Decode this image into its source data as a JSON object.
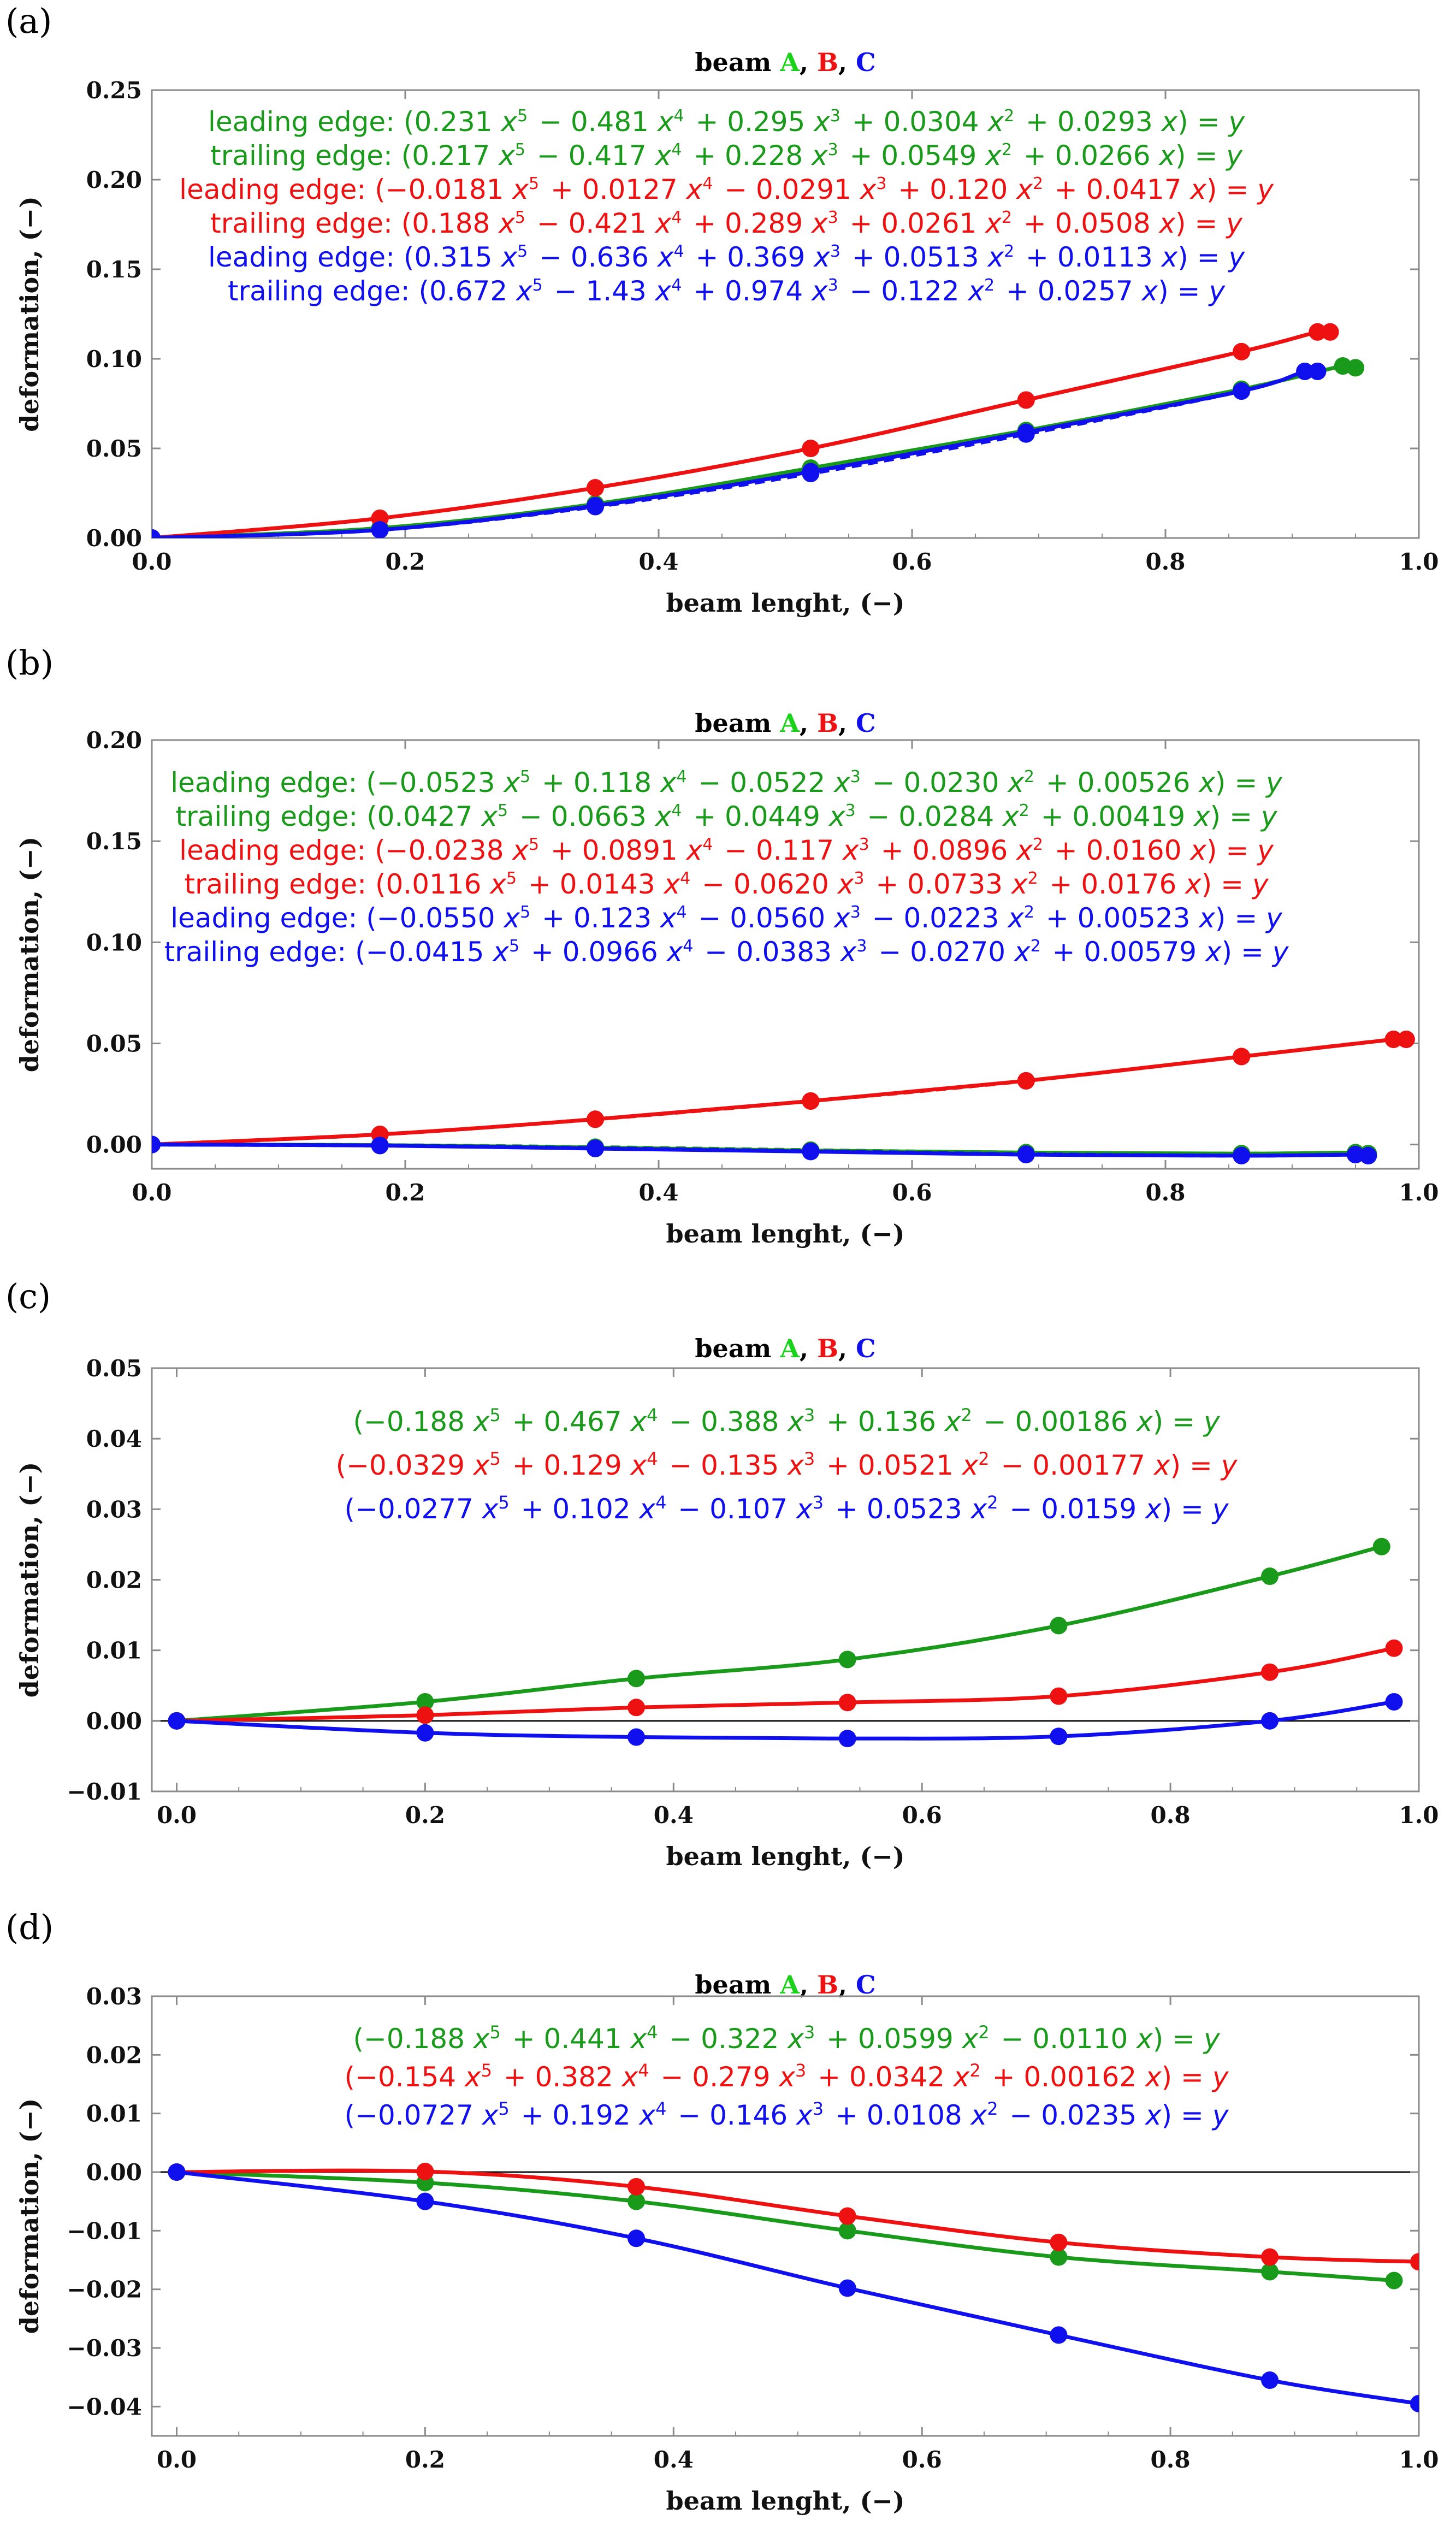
{
  "colors": {
    "A": "#1a9a1a",
    "A_title": "#19d219",
    "B": "#ee1111",
    "C": "#1010ee"
  },
  "chart_data": [
    {
      "panel": "(a)",
      "type": "line",
      "title": {
        "prefix": "beam ",
        "A": "A",
        "sep1": ", ",
        "B": "B",
        "sep2": ", ",
        "C": "C"
      },
      "xlabel": "beam lenght, (−)",
      "ylabel": "deformation, (−)",
      "xlim": [
        0,
        1.0
      ],
      "ylim": [
        0,
        0.25
      ],
      "xticks": [
        "0.0",
        "0.2",
        "0.4",
        "0.6",
        "0.8",
        "1.0"
      ],
      "yticks": [
        "0.00",
        "0.05",
        "0.10",
        "0.15",
        "0.20",
        "0.25"
      ],
      "xtick_values": [
        0,
        0.2,
        0.4,
        0.6,
        0.8,
        1.0
      ],
      "ytick_values": [
        0,
        0.05,
        0.1,
        0.15,
        0.2,
        0.25
      ],
      "zero_line": false,
      "equations": [
        {
          "color": "A",
          "label": "leading edge:",
          "coeffs": [
            0.231,
            -0.481,
            0.295,
            0.0304,
            0.0293
          ],
          "text": [
            "0.231",
            "− 0.481",
            "+ 0.295",
            "+ 0.0304",
            "+ 0.0293"
          ]
        },
        {
          "color": "A",
          "label": "trailing edge:",
          "coeffs": [
            0.217,
            -0.417,
            0.228,
            0.0549,
            0.0266
          ],
          "text": [
            "0.217",
            "− 0.417",
            "+ 0.228",
            "+ 0.0549",
            "+ 0.0266"
          ]
        },
        {
          "color": "B",
          "label": "leading edge:",
          "coeffs": [
            -0.0181,
            0.0127,
            -0.0291,
            0.12,
            0.0417
          ],
          "text": [
            "−0.0181",
            "+ 0.0127",
            "− 0.0291",
            "+ 0.120",
            "+ 0.0417"
          ]
        },
        {
          "color": "B",
          "label": "trailing edge:",
          "coeffs": [
            0.188,
            -0.421,
            0.289,
            0.0261,
            0.0508
          ],
          "text": [
            "0.188",
            "− 0.421",
            "+ 0.289",
            "+ 0.0261",
            "+ 0.0508"
          ]
        },
        {
          "color": "C",
          "label": "leading edge:",
          "coeffs": [
            0.315,
            -0.636,
            0.369,
            0.0513,
            0.0113
          ],
          "text": [
            "0.315",
            "− 0.636",
            "+ 0.369",
            "+ 0.0513",
            "+ 0.0113"
          ]
        },
        {
          "color": "C",
          "label": "trailing edge:",
          "coeffs": [
            0.672,
            -1.43,
            0.974,
            -0.122,
            0.0257
          ],
          "text": [
            "0.672",
            "− 1.43",
            "+ 0.974",
            "− 0.122",
            "+ 0.0257"
          ]
        }
      ],
      "series": [
        {
          "name": "A leading edge",
          "color": "A",
          "dashed": false,
          "x": [
            0,
            0.18,
            0.35,
            0.52,
            0.69,
            0.86,
            0.94,
            0.95
          ],
          "y": [
            0,
            0.0055,
            0.019,
            0.039,
            0.06,
            0.083,
            0.096,
            0.095
          ]
        },
        {
          "name": "A trailing edge",
          "color": "A",
          "dashed": true,
          "x": [
            0,
            0.18,
            0.35,
            0.52,
            0.69,
            0.86,
            0.94,
            0.95
          ],
          "y": [
            0,
            0.0055,
            0.0185,
            0.038,
            0.059,
            0.083,
            0.096,
            0.095
          ]
        },
        {
          "name": "B leading edge",
          "color": "B",
          "dashed": false,
          "x": [
            0,
            0.18,
            0.35,
            0.52,
            0.69,
            0.86,
            0.92,
            0.93
          ],
          "y": [
            0,
            0.011,
            0.028,
            0.05,
            0.077,
            0.104,
            0.115,
            0.115
          ]
        },
        {
          "name": "B trailing edge",
          "color": "B",
          "dashed": true,
          "x": [
            0,
            0.18,
            0.35,
            0.52,
            0.69,
            0.86,
            0.92,
            0.93
          ],
          "y": [
            0,
            0.011,
            0.028,
            0.05,
            0.077,
            0.104,
            0.115,
            0.115
          ]
        },
        {
          "name": "C leading edge",
          "color": "C",
          "dashed": false,
          "x": [
            0,
            0.18,
            0.35,
            0.52,
            0.69,
            0.86,
            0.91,
            0.92
          ],
          "y": [
            0,
            0.0045,
            0.018,
            0.037,
            0.059,
            0.082,
            0.093,
            0.093
          ]
        },
        {
          "name": "C trailing edge",
          "color": "C",
          "dashed": true,
          "x": [
            0,
            0.18,
            0.35,
            0.52,
            0.69,
            0.86,
            0.91,
            0.92
          ],
          "y": [
            0,
            0.0045,
            0.0175,
            0.036,
            0.058,
            0.082,
            0.093,
            0.093
          ]
        }
      ]
    },
    {
      "panel": "(b)",
      "type": "line",
      "title": {
        "prefix": "beam ",
        "A": "A",
        "sep1": ", ",
        "B": "B",
        "sep2": ", ",
        "C": "C"
      },
      "xlabel": "beam lenght, (−)",
      "ylabel": "deformation, (−)",
      "xlim": [
        0,
        1.0
      ],
      "ylim": [
        -0.012,
        0.2
      ],
      "xticks": [
        "0.0",
        "0.2",
        "0.4",
        "0.6",
        "0.8",
        "1.0"
      ],
      "yticks": [
        "0.00",
        "0.05",
        "0.10",
        "0.15",
        "0.20"
      ],
      "xtick_values": [
        0,
        0.2,
        0.4,
        0.6,
        0.8,
        1.0
      ],
      "ytick_values": [
        0,
        0.05,
        0.1,
        0.15,
        0.2
      ],
      "zero_line": false,
      "equations": [
        {
          "color": "A",
          "label": "leading edge:",
          "coeffs": [
            -0.0523,
            0.118,
            -0.0522,
            -0.023,
            0.00526
          ],
          "text": [
            "−0.0523",
            "+ 0.118",
            "− 0.0522",
            "− 0.0230",
            "+ 0.00526"
          ]
        },
        {
          "color": "A",
          "label": "trailing edge:",
          "coeffs": [
            0.0427,
            -0.0663,
            0.0449,
            -0.0284,
            0.00419
          ],
          "text": [
            "0.0427",
            "− 0.0663",
            "+ 0.0449",
            "− 0.0284",
            "+ 0.00419"
          ]
        },
        {
          "color": "B",
          "label": "leading edge:",
          "coeffs": [
            -0.0238,
            0.0891,
            -0.117,
            0.0896,
            0.016
          ],
          "text": [
            "−0.0238",
            "+ 0.0891",
            "− 0.117",
            "+ 0.0896",
            "+ 0.0160"
          ]
        },
        {
          "color": "B",
          "label": "trailing edge:",
          "coeffs": [
            0.0116,
            0.0143,
            -0.062,
            0.0733,
            0.0176
          ],
          "text": [
            "0.0116",
            "+ 0.0143",
            "− 0.0620",
            "+ 0.0733",
            "+ 0.0176"
          ]
        },
        {
          "color": "C",
          "label": "leading edge:",
          "coeffs": [
            -0.055,
            0.123,
            -0.056,
            -0.0223,
            0.00523
          ],
          "text": [
            "−0.0550",
            "+ 0.123",
            "− 0.0560",
            "− 0.0223",
            "+ 0.00523"
          ]
        },
        {
          "color": "C",
          "label": "trailing edge:",
          "coeffs": [
            -0.0415,
            0.0966,
            -0.0383,
            -0.027,
            0.00579
          ],
          "text": [
            "−0.0415",
            "+ 0.0966",
            "− 0.0383",
            "− 0.0270",
            "+ 0.00579"
          ]
        }
      ],
      "series": [
        {
          "name": "A leading edge",
          "color": "A",
          "dashed": false,
          "x": [
            0,
            0.18,
            0.35,
            0.52,
            0.69,
            0.86,
            0.95,
            0.96
          ],
          "y": [
            0,
            -0.0003,
            -0.0015,
            -0.003,
            -0.004,
            -0.0045,
            -0.004,
            -0.0045
          ]
        },
        {
          "name": "A trailing edge",
          "color": "A",
          "dashed": true,
          "x": [
            0,
            0.18,
            0.35,
            0.52,
            0.69,
            0.86,
            0.95,
            0.96
          ],
          "y": [
            0,
            -0.0003,
            -0.0013,
            -0.0028,
            -0.004,
            -0.0045,
            -0.004,
            -0.0045
          ]
        },
        {
          "name": "B leading edge",
          "color": "B",
          "dashed": false,
          "x": [
            0,
            0.18,
            0.35,
            0.52,
            0.69,
            0.86,
            0.98,
            0.99
          ],
          "y": [
            0,
            0.005,
            0.0125,
            0.0215,
            0.0315,
            0.0435,
            0.052,
            0.052
          ]
        },
        {
          "name": "B trailing edge",
          "color": "B",
          "dashed": true,
          "x": [
            0,
            0.18,
            0.35,
            0.52,
            0.69,
            0.86,
            0.98,
            0.99
          ],
          "y": [
            0,
            0.005,
            0.0125,
            0.0215,
            0.0315,
            0.0435,
            0.052,
            0.052
          ]
        },
        {
          "name": "C leading edge",
          "color": "C",
          "dashed": false,
          "x": [
            0,
            0.18,
            0.35,
            0.52,
            0.69,
            0.86,
            0.95,
            0.96
          ],
          "y": [
            0,
            -0.0005,
            -0.002,
            -0.0035,
            -0.005,
            -0.0055,
            -0.005,
            -0.0055
          ]
        },
        {
          "name": "C trailing edge",
          "color": "C",
          "dashed": true,
          "x": [
            0,
            0.18,
            0.35,
            0.52,
            0.69,
            0.86,
            0.95,
            0.96
          ],
          "y": [
            0,
            -0.0005,
            -0.0018,
            -0.0033,
            -0.0048,
            -0.0055,
            -0.005,
            -0.0055
          ]
        }
      ]
    },
    {
      "panel": "(c)",
      "type": "line",
      "title": {
        "prefix": "beam ",
        "A": "A",
        "sep1": ", ",
        "B": "B",
        "sep2": ", ",
        "C": "C"
      },
      "xlabel": "beam lenght, (−)",
      "ylabel": "deformation, (−)",
      "xlim": [
        -0.02,
        1.0
      ],
      "ylim": [
        -0.01,
        0.05
      ],
      "xticks": [
        "0.0",
        "0.2",
        "0.4",
        "0.6",
        "0.8",
        "1.0"
      ],
      "yticks": [
        "−0.01",
        "0.00",
        "0.01",
        "0.02",
        "0.03",
        "0.04",
        "0.05"
      ],
      "xtick_values": [
        0,
        0.2,
        0.4,
        0.6,
        0.8,
        1.0
      ],
      "ytick_values": [
        -0.01,
        0,
        0.01,
        0.02,
        0.03,
        0.04,
        0.05
      ],
      "zero_line": true,
      "equations": [
        {
          "color": "A",
          "label": "",
          "coeffs": [
            -0.188,
            0.467,
            -0.388,
            0.136,
            -0.00186
          ],
          "text": [
            "−0.188",
            "+ 0.467",
            "− 0.388",
            "+ 0.136",
            "− 0.00186"
          ]
        },
        {
          "color": "B",
          "label": "",
          "coeffs": [
            -0.0329,
            0.129,
            -0.135,
            0.0521,
            -0.00177
          ],
          "text": [
            "−0.0329",
            "+ 0.129",
            "− 0.135",
            "+ 0.0521",
            "− 0.00177"
          ]
        },
        {
          "color": "C",
          "label": "",
          "coeffs": [
            -0.0277,
            0.102,
            -0.107,
            0.0523,
            -0.0159
          ],
          "text": [
            "−0.0277",
            "+ 0.102",
            "− 0.107",
            "+ 0.0523",
            "− 0.0159"
          ]
        }
      ],
      "series": [
        {
          "name": "A",
          "color": "A",
          "dashed": false,
          "x": [
            0,
            0.2,
            0.37,
            0.54,
            0.71,
            0.88,
            0.97
          ],
          "y": [
            0,
            0.0027,
            0.006,
            0.0087,
            0.0135,
            0.0205,
            0.0247
          ]
        },
        {
          "name": "B",
          "color": "B",
          "dashed": false,
          "x": [
            0,
            0.2,
            0.37,
            0.54,
            0.71,
            0.88,
            0.98
          ],
          "y": [
            0,
            0.0008,
            0.0019,
            0.0026,
            0.0035,
            0.0069,
            0.0103
          ]
        },
        {
          "name": "C",
          "color": "C",
          "dashed": false,
          "x": [
            0,
            0.2,
            0.37,
            0.54,
            0.71,
            0.88,
            0.98
          ],
          "y": [
            0,
            -0.0017,
            -0.0023,
            -0.0025,
            -0.0022,
            0.0,
            0.0027
          ]
        }
      ]
    },
    {
      "panel": "(d)",
      "type": "line",
      "title": {
        "prefix": "beam ",
        "A": "A",
        "sep1": ", ",
        "B": "B",
        "sep2": ", ",
        "C": "C"
      },
      "xlabel": "beam lenght, (−)",
      "ylabel": "deformation, (−)",
      "xlim": [
        -0.02,
        1.0
      ],
      "ylim": [
        -0.045,
        0.03
      ],
      "xticks": [
        "0.0",
        "0.2",
        "0.4",
        "0.6",
        "0.8",
        "1.0"
      ],
      "yticks": [
        "−0.04",
        "−0.03",
        "−0.02",
        "−0.01",
        "0.00",
        "0.01",
        "0.02",
        "0.03"
      ],
      "xtick_values": [
        0,
        0.2,
        0.4,
        0.6,
        0.8,
        1.0
      ],
      "ytick_values": [
        -0.04,
        -0.03,
        -0.02,
        -0.01,
        0,
        0.01,
        0.02,
        0.03
      ],
      "zero_line": true,
      "equations": [
        {
          "color": "A",
          "label": "",
          "coeffs": [
            -0.188,
            0.441,
            -0.322,
            0.0599,
            -0.011
          ],
          "text": [
            "−0.188",
            "+ 0.441",
            "− 0.322",
            "+ 0.0599",
            "− 0.0110"
          ]
        },
        {
          "color": "B",
          "label": "",
          "coeffs": [
            -0.154,
            0.382,
            -0.279,
            0.0342,
            0.00162
          ],
          "text": [
            "−0.154",
            "+ 0.382",
            "− 0.279",
            "+ 0.0342",
            "+ 0.00162"
          ]
        },
        {
          "color": "C",
          "label": "",
          "coeffs": [
            -0.0727,
            0.192,
            -0.146,
            0.0108,
            -0.0235
          ],
          "text": [
            "−0.0727",
            "+ 0.192",
            "− 0.146",
            "+ 0.0108",
            "− 0.0235"
          ]
        }
      ],
      "series": [
        {
          "name": "A",
          "color": "A",
          "dashed": false,
          "x": [
            0,
            0.2,
            0.37,
            0.54,
            0.71,
            0.88,
            0.98
          ],
          "y": [
            0,
            -0.0018,
            -0.005,
            -0.01,
            -0.0145,
            -0.017,
            -0.0185
          ]
        },
        {
          "name": "B",
          "color": "B",
          "dashed": false,
          "x": [
            0,
            0.2,
            0.37,
            0.54,
            0.71,
            0.88,
            1.0
          ],
          "y": [
            0,
            0.0001,
            -0.0025,
            -0.0075,
            -0.012,
            -0.0145,
            -0.0153
          ]
        },
        {
          "name": "C",
          "color": "C",
          "dashed": false,
          "x": [
            0,
            0.2,
            0.37,
            0.54,
            0.71,
            0.88,
            1.0
          ],
          "y": [
            0,
            -0.005,
            -0.0113,
            -0.0198,
            -0.0278,
            -0.0355,
            -0.0395
          ]
        }
      ]
    }
  ]
}
